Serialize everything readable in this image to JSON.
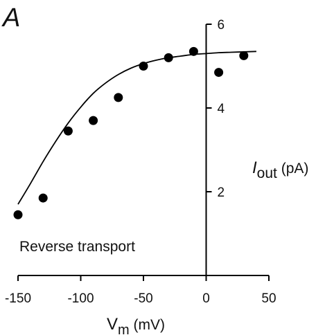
{
  "chart_data": {
    "type": "scatter",
    "panel_label": "A",
    "annotation": "Reverse transport",
    "xlabel": {
      "main": "V",
      "sub": "m",
      "unit": " (mV)"
    },
    "ylabel": {
      "main": "I",
      "sub": "out",
      "unit": " (pA)"
    },
    "xlim": [
      -150,
      50
    ],
    "ylim": [
      0,
      6
    ],
    "xticks": [
      -150,
      -100,
      -50,
      0,
      50
    ],
    "yticks": [
      2,
      4,
      6
    ],
    "grid": false,
    "legend": "none",
    "series": [
      {
        "kind": "points",
        "x": [
          -150,
          -130,
          -110,
          -90,
          -70,
          -50,
          -30,
          -10,
          10,
          30
        ],
        "y": [
          1.45,
          1.85,
          3.45,
          3.7,
          4.25,
          5.0,
          5.2,
          5.35,
          4.85,
          5.25
        ]
      },
      {
        "kind": "fit-curve",
        "x": [
          -150,
          -140,
          -130,
          -120,
          -110,
          -100,
          -90,
          -80,
          -70,
          -60,
          -50,
          -40,
          -30,
          -20,
          -10,
          0,
          10,
          20,
          30,
          40
        ],
        "y": [
          1.7,
          2.2,
          2.72,
          3.2,
          3.64,
          4.02,
          4.35,
          4.6,
          4.8,
          4.95,
          5.06,
          5.14,
          5.2,
          5.24,
          5.28,
          5.3,
          5.32,
          5.33,
          5.34,
          5.35
        ]
      }
    ],
    "colors": {
      "marker": "#000000",
      "line": "#000000",
      "axis": "#000000"
    }
  }
}
